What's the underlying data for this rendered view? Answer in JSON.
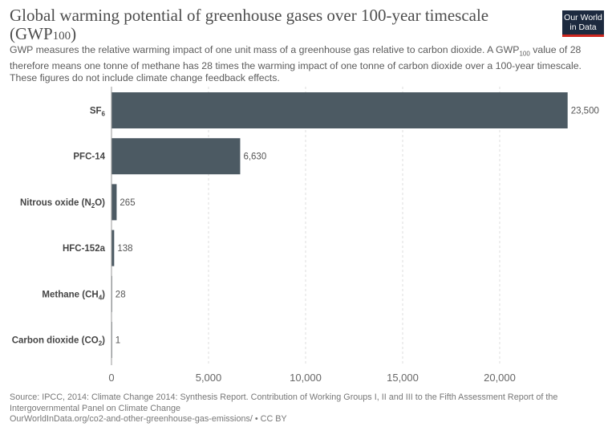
{
  "header": {
    "title_main": "Global warming potential of greenhouse gases over 100-year timescale (GWP",
    "title_sub": "100",
    "title_end": ")",
    "subtitle_a": "GWP measures the relative warming impact of one unit mass of a greenhouse gas relative to carbon dioxide. A GWP",
    "subtitle_sub": "100",
    "subtitle_b": " value of 28 therefore means one tonne of methane has 28 times the warming impact of one tonne of carbon dioxide over a 100-year timescale. These figures do not include climate change feedback effects.",
    "logo_line1": "Our World",
    "logo_line2": "in Data"
  },
  "footer": {
    "source": "Source: IPCC, 2014: Climate Change 2014: Synthesis Report. Contribution of Working Groups I, II and III to the Fifth Assessment Report of the Intergovernmental Panel on Climate Change",
    "url": "OurWorldInData.org/co2-and-other-greenhouse-gas-emissions/ • CC BY"
  },
  "chart_data": {
    "type": "bar",
    "orientation": "horizontal",
    "categories": [
      {
        "label": "SF",
        "sub": "6",
        "after": ""
      },
      {
        "label": "PFC-14",
        "sub": "",
        "after": ""
      },
      {
        "label": "Nitrous oxide (N",
        "sub": "2",
        "after": "O)"
      },
      {
        "label": "HFC-152a",
        "sub": "",
        "after": ""
      },
      {
        "label": "Methane (CH",
        "sub": "4",
        "after": ")"
      },
      {
        "label": "Carbon dioxide (CO",
        "sub": "2",
        "after": ")"
      }
    ],
    "values": [
      23500,
      6630,
      265,
      138,
      28,
      1
    ],
    "value_labels": [
      "23,500",
      "6,630",
      "265",
      "138",
      "28",
      "1"
    ],
    "xticks": [
      0,
      5000,
      10000,
      15000,
      20000
    ],
    "xtick_labels": [
      "0",
      "5,000",
      "10,000",
      "15,000",
      "20,000"
    ],
    "xlim": [
      0,
      23500
    ],
    "grid": "vertical dashed",
    "bar_color": "#4c5a63"
  }
}
